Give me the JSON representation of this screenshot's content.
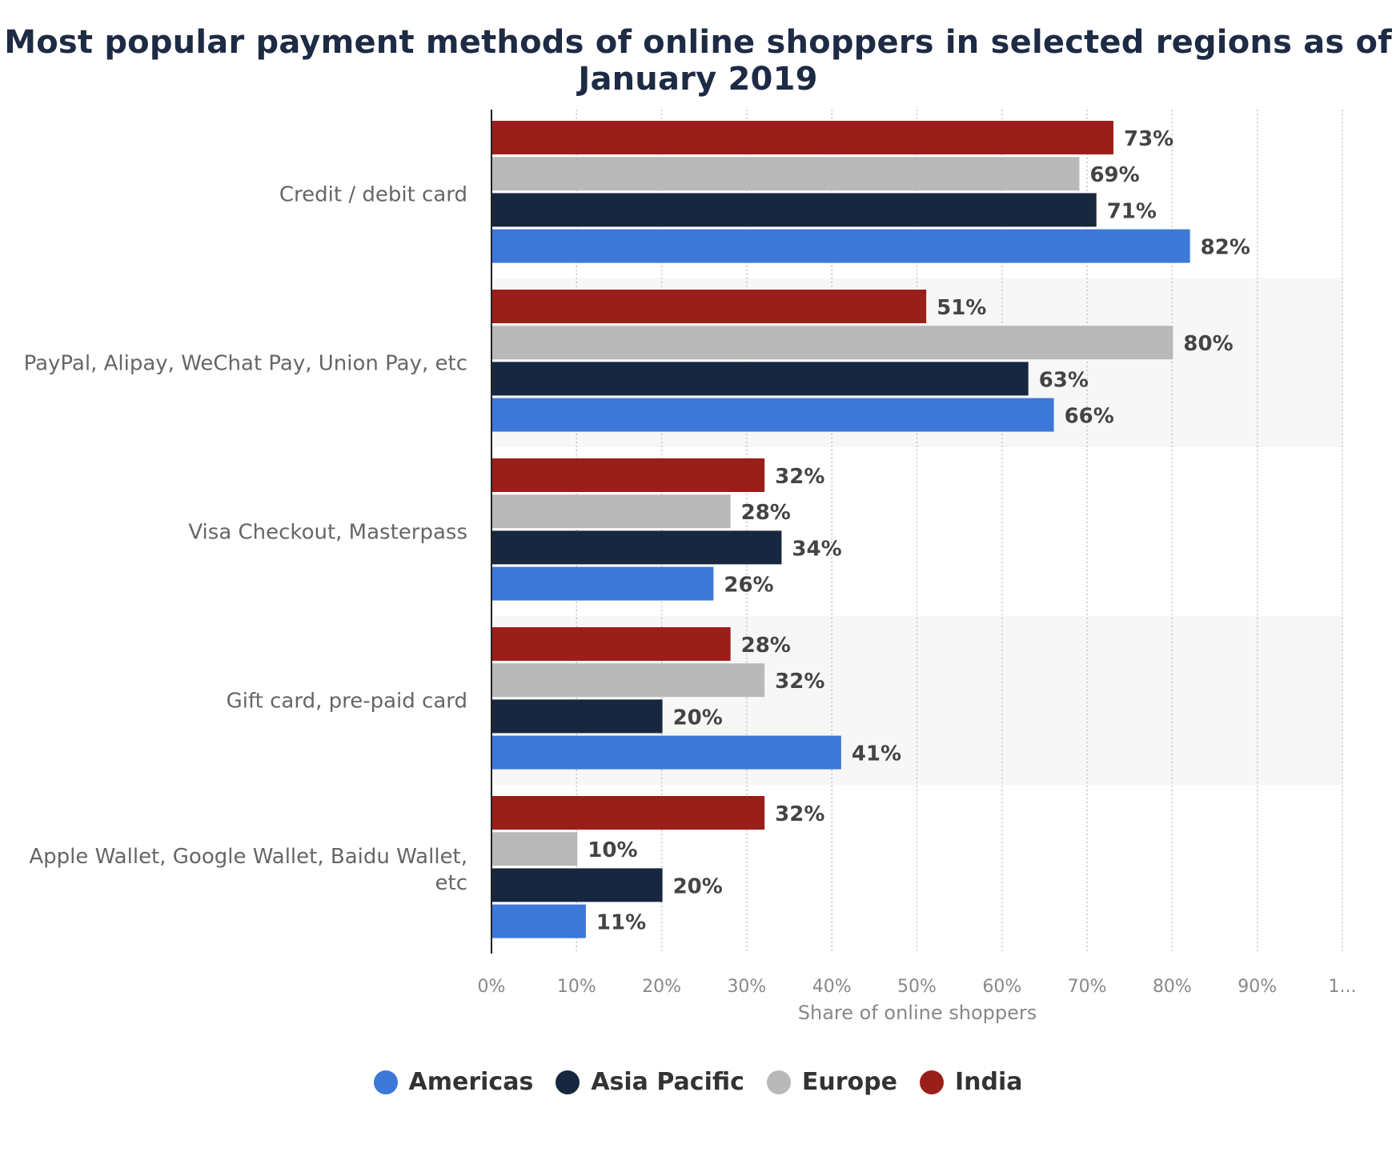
{
  "chart_data": {
    "type": "bar",
    "orientation": "horizontal",
    "title": "Most popular payment methods of online shoppers in selected regions as of January 2019",
    "xlabel": "Share of online shoppers",
    "ylabel": "",
    "xlim": [
      0,
      100
    ],
    "x_tick_labels": [
      "0%",
      "10%",
      "20%",
      "30%",
      "40%",
      "50%",
      "60%",
      "70%",
      "80%",
      "90%",
      "1..."
    ],
    "grid": true,
    "legend_position": "bottom",
    "categories": [
      [
        "Credit / debit card"
      ],
      [
        "PayPal, Alipay, WeChat Pay, Union Pay, etc"
      ],
      [
        "Visa Checkout, Masterpass"
      ],
      [
        "Gift card, pre-paid card"
      ],
      [
        "Apple Wallet, Google Wallet, Baidu Wallet,",
        "etc"
      ]
    ],
    "series": [
      {
        "name": "India",
        "color": "#9a1e1a",
        "values": [
          73,
          51,
          32,
          28,
          32
        ]
      },
      {
        "name": "Europe",
        "color": "#b9b9b9",
        "values": [
          69,
          80,
          28,
          32,
          10
        ]
      },
      {
        "name": "Asia Pacific",
        "color": "#17273f",
        "values": [
          71,
          63,
          34,
          20,
          20
        ]
      },
      {
        "name": "Americas",
        "color": "#3c78d8",
        "values": [
          82,
          66,
          26,
          41,
          11
        ]
      }
    ],
    "value_suffix": "%"
  },
  "legend": [
    {
      "name": "Americas",
      "color": "#3c78d8"
    },
    {
      "name": "Asia Pacific",
      "color": "#17273f"
    },
    {
      "name": "Europe",
      "color": "#b9b9b9"
    },
    {
      "name": "India",
      "color": "#9a1e1a"
    }
  ]
}
